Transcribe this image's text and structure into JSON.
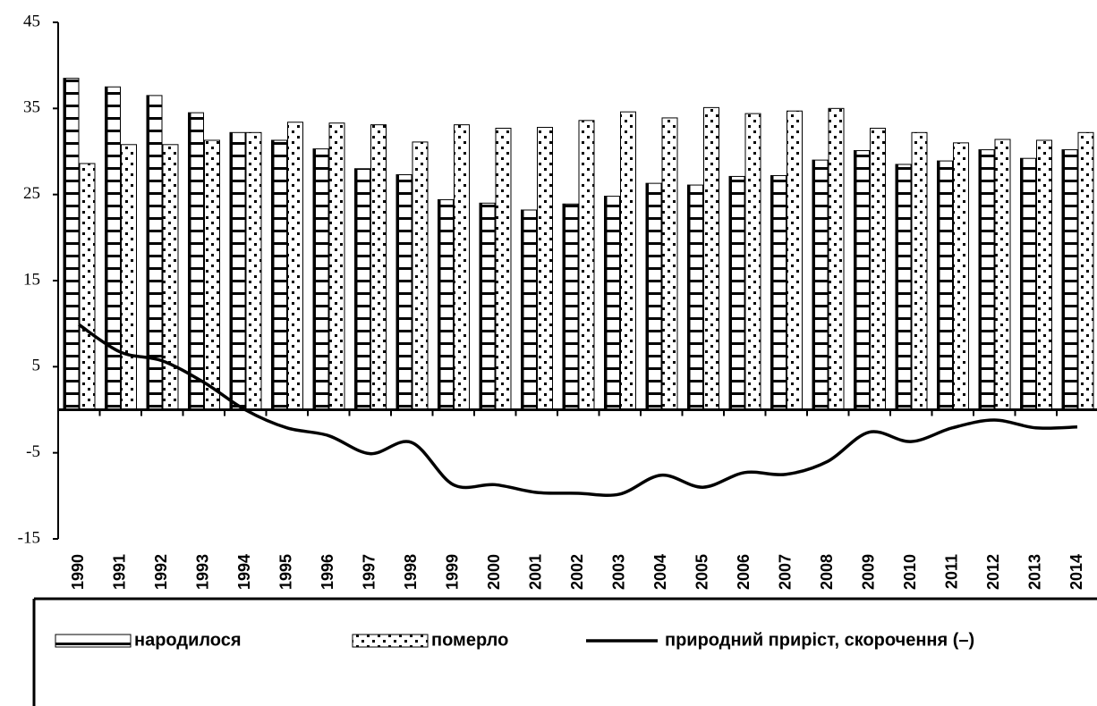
{
  "chart_data": {
    "type": "bar+line",
    "categories": [
      "1990",
      "1991",
      "1992",
      "1993",
      "1994",
      "1995",
      "1996",
      "1997",
      "1998",
      "1999",
      "2000",
      "2001",
      "2002",
      "2003",
      "2004",
      "2005",
      "2006",
      "2007",
      "2008",
      "2009",
      "2010",
      "2011",
      "2012",
      "2013",
      "2014"
    ],
    "series": [
      {
        "name": "народилося",
        "type": "bar",
        "color": "#000000",
        "values": [
          38.5,
          37.5,
          36.5,
          34.5,
          32.2,
          31.3,
          30.3,
          28,
          27.3,
          24.4,
          24,
          23.2,
          23.9,
          24.8,
          26.3,
          26.1,
          27.1,
          27.2,
          29,
          30.1,
          28.5,
          28.9,
          30.2,
          29.2,
          30.2
        ]
      },
      {
        "name": "померло",
        "type": "bar",
        "color": "#000000",
        "values": [
          28.6,
          30.8,
          30.8,
          31.3,
          32.2,
          33.4,
          33.3,
          33.1,
          31.1,
          33.1,
          32.7,
          32.8,
          33.6,
          34.6,
          33.9,
          35.1,
          34.4,
          34.7,
          35,
          32.7,
          32.2,
          31,
          31.4,
          31.3,
          32.2
        ]
      },
      {
        "name": "природний приріст, скорочення (–)",
        "type": "line",
        "color": "#000000",
        "values": [
          9.9,
          6.7,
          5.7,
          3.2,
          0,
          -2.1,
          -3,
          -5.1,
          -3.8,
          -8.7,
          -8.7,
          -9.6,
          -9.7,
          -9.8,
          -7.6,
          -9,
          -7.3,
          -7.5,
          -6,
          -2.6,
          -3.7,
          -2.1,
          -1.2,
          -2.1,
          -2
        ]
      }
    ],
    "ylim": [
      -15,
      45
    ],
    "yticks": [
      -15,
      -5,
      5,
      15,
      25,
      35,
      45
    ],
    "legend": "bottom"
  }
}
